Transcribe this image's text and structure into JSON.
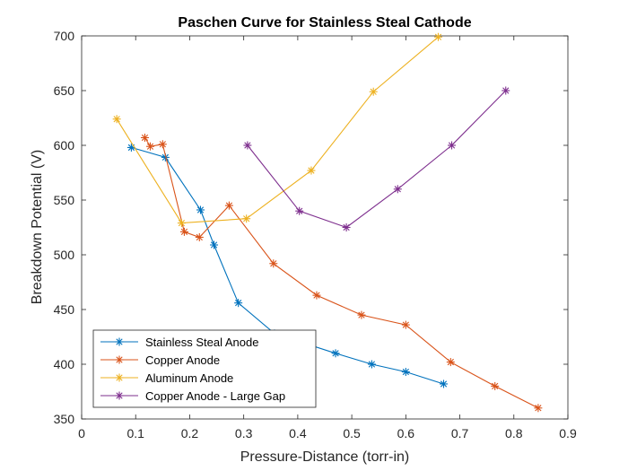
{
  "chart_data": {
    "type": "line",
    "title": "Paschen Curve for Stainless Steal Cathode",
    "xlabel": "Pressure-Distance (torr-in)",
    "ylabel": "Breakdown Potential (V)",
    "xlim": [
      0,
      0.9
    ],
    "ylim": [
      350,
      700
    ],
    "xticks": [
      "0",
      "0.1",
      "0.2",
      "0.3",
      "0.4",
      "0.5",
      "0.6",
      "0.7",
      "0.8",
      "0.9"
    ],
    "yticks": [
      "350",
      "400",
      "450",
      "500",
      "550",
      "600",
      "650",
      "700"
    ],
    "xtick_values": [
      0,
      0.1,
      0.2,
      0.3,
      0.4,
      0.5,
      0.6,
      0.7,
      0.8,
      0.9
    ],
    "ytick_values": [
      350,
      400,
      450,
      500,
      550,
      600,
      650,
      700
    ],
    "grid": false,
    "legend_location": "bottom-left",
    "marker": "asterisk",
    "series": [
      {
        "name": "Stainless Steal Anode",
        "color": "#0072BD",
        "points": [
          [
            0.092,
            598
          ],
          [
            0.155,
            589
          ],
          [
            0.22,
            541
          ],
          [
            0.245,
            509
          ],
          [
            0.29,
            456
          ],
          [
            0.357,
            428
          ],
          [
            0.47,
            410
          ],
          [
            0.537,
            400
          ],
          [
            0.6,
            393
          ],
          [
            0.67,
            382
          ]
        ]
      },
      {
        "name": "Copper Anode",
        "color": "#D95319",
        "points": [
          [
            0.117,
            607
          ],
          [
            0.127,
            599
          ],
          [
            0.15,
            601
          ],
          [
            0.19,
            521
          ],
          [
            0.218,
            516
          ],
          [
            0.273,
            545
          ],
          [
            0.355,
            492
          ],
          [
            0.435,
            463
          ],
          [
            0.518,
            445
          ],
          [
            0.6,
            436
          ],
          [
            0.683,
            402
          ],
          [
            0.765,
            380
          ],
          [
            0.845,
            360
          ]
        ]
      },
      {
        "name": "Aluminum Anode",
        "color": "#EDB120",
        "points": [
          [
            0.065,
            624
          ],
          [
            0.185,
            529
          ],
          [
            0.305,
            533
          ],
          [
            0.425,
            577
          ],
          [
            0.54,
            649
          ],
          [
            0.66,
            699
          ]
        ]
      },
      {
        "name": "Copper Anode - Large Gap",
        "color": "#7E2F8E",
        "points": [
          [
            0.307,
            600
          ],
          [
            0.403,
            540
          ],
          [
            0.49,
            525
          ],
          [
            0.585,
            560
          ],
          [
            0.685,
            600
          ],
          [
            0.785,
            650
          ]
        ]
      }
    ]
  }
}
